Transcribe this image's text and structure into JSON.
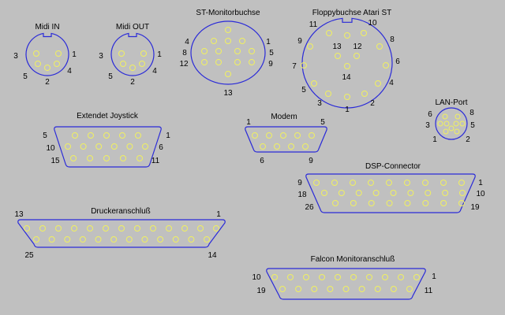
{
  "colors": {
    "background": "#c0c0c0",
    "outline": "#2a2ad8",
    "pin_stroke": "#f0f060",
    "text": "#000000"
  },
  "connectors": [
    {
      "id": "midi-in",
      "title": "Midi IN",
      "pin_numbers": [
        "1",
        "2",
        "3",
        "4",
        "5"
      ]
    },
    {
      "id": "midi-out",
      "title": "Midi OUT",
      "pin_numbers": [
        "1",
        "2",
        "3",
        "4",
        "5"
      ]
    },
    {
      "id": "st-monitor",
      "title": "ST-Monitorbuchse",
      "pin_numbers": [
        "1",
        "4",
        "5",
        "8",
        "9",
        "12",
        "13"
      ]
    },
    {
      "id": "floppy-st",
      "title": "Floppybuchse Atari ST",
      "pin_numbers": [
        "1",
        "2",
        "3",
        "4",
        "5",
        "6",
        "7",
        "8",
        "9",
        "10",
        "11",
        "12",
        "13",
        "14"
      ]
    },
    {
      "id": "lan-port",
      "title": "LAN-Port",
      "pin_numbers": [
        "1",
        "2",
        "3",
        "5",
        "6",
        "8"
      ]
    },
    {
      "id": "extended-joystick",
      "title": "Extendet Joystick",
      "pin_numbers": [
        "1",
        "5",
        "6",
        "10",
        "11",
        "15"
      ]
    },
    {
      "id": "modem",
      "title": "Modem",
      "pin_numbers": [
        "1",
        "5",
        "6",
        "9"
      ]
    },
    {
      "id": "dsp-connector",
      "title": "DSP-Connector",
      "pin_numbers": [
        "1",
        "9",
        "10",
        "18",
        "19",
        "26"
      ]
    },
    {
      "id": "printer-port",
      "title": "Druckeranschluß",
      "pin_numbers": [
        "1",
        "13",
        "14",
        "25"
      ]
    },
    {
      "id": "falcon-monitor",
      "title": "Falcon  Monitoranschluß",
      "pin_numbers": [
        "1",
        "10",
        "11",
        "19"
      ]
    }
  ]
}
